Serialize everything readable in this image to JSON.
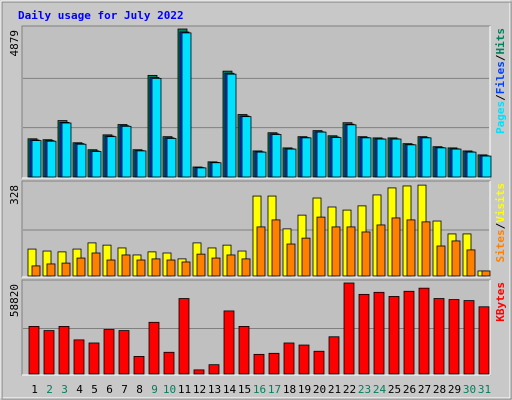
{
  "chart_data": {
    "type": "bar",
    "title": "Daily usage for July 2022",
    "categories": [
      "1",
      "2",
      "3",
      "4",
      "5",
      "6",
      "7",
      "8",
      "9",
      "10",
      "11",
      "12",
      "13",
      "14",
      "15",
      "16",
      "17",
      "18",
      "19",
      "20",
      "21",
      "22",
      "23",
      "24",
      "25",
      "26",
      "27",
      "28",
      "29",
      "30",
      "31"
    ],
    "category_colors": [
      "#000000",
      "#00805c",
      "#00805c",
      "#000000",
      "#000000",
      "#000000",
      "#000000",
      "#000000",
      "#00805c",
      "#00805c",
      "#000000",
      "#000000",
      "#000000",
      "#000000",
      "#000000",
      "#00805c",
      "#00805c",
      "#000000",
      "#000000",
      "#000000",
      "#000000",
      "#000000",
      "#00805c",
      "#00805c",
      "#000000",
      "#000000",
      "#000000",
      "#000000",
      "#000000",
      "#00805c",
      "#00805c"
    ],
    "legend_separator": "/",
    "panels": [
      {
        "ylim": [
          0,
          4879
        ],
        "yticks": [
          4879
        ],
        "series": [
          {
            "name": "Hits",
            "color": "#00805c",
            "values": [
              1260,
              1230,
              1860,
              1130,
              900,
              1390,
              1730,
              900,
              3350,
              1330,
              4879,
              330,
              500,
              3490,
              2060,
              860,
              1460,
              960,
              1330,
              1530,
              1360,
              1790,
              1330,
              1290,
              1290,
              1100,
              1330,
              1000,
              960,
              860,
              730
            ]
          },
          {
            "name": "Files",
            "color": "#0040ff",
            "values": [
              1220,
              1200,
              1800,
              1100,
              860,
              1350,
              1690,
              870,
              3280,
              1290,
              4780,
              310,
              480,
              3420,
              2010,
              830,
              1420,
              930,
              1300,
              1490,
              1320,
              1740,
              1300,
              1260,
              1260,
              1070,
              1300,
              970,
              930,
              830,
              700
            ]
          },
          {
            "name": "Pages",
            "color": "#00e0ff",
            "values": [
              1200,
              1180,
              1780,
              1080,
              840,
              1330,
              1670,
              860,
              3250,
              1270,
              4750,
              300,
              470,
              3390,
              1990,
              820,
              1400,
              920,
              1290,
              1480,
              1300,
              1720,
              1290,
              1250,
              1250,
              1060,
              1290,
              960,
              920,
              820,
              690
            ]
          }
        ]
      },
      {
        "ylim": [
          0,
          328
        ],
        "yticks": [
          328
        ],
        "series": [
          {
            "name": "Visits",
            "color": "#ffff00",
            "values": [
              96,
              89,
              86,
              96,
              118,
              110,
              100,
              75,
              86,
              82,
              61,
              118,
              100,
              110,
              89,
              285,
              285,
              168,
              217,
              278,
              246,
              235,
              250,
              289,
              314,
              321,
              324,
              196,
              150,
              150,
              18
            ]
          },
          {
            "name": "Sites",
            "color": "#ff8000",
            "values": [
              36,
              43,
              46,
              64,
              82,
              57,
              75,
              57,
              61,
              57,
              50,
              78,
              64,
              75,
              61,
              175,
              200,
              114,
              135,
              210,
              175,
              175,
              157,
              182,
              207,
              200,
              193,
              107,
              125,
              93,
              18
            ]
          }
        ]
      },
      {
        "ylim": [
          0,
          58820
        ],
        "yticks": [
          58820
        ],
        "series": [
          {
            "name": "KBytes",
            "color": "#ff0000",
            "values": [
              30750,
              28070,
              30750,
              22060,
              20050,
              28740,
              28070,
              11360,
              33420,
              14040,
              48790,
              2670,
              6020,
              40770,
              30750,
              12700,
              13370,
              20050,
              18720,
              14710,
              24070,
              58820,
              51470,
              52800,
              50130,
              53470,
              55480,
              48790,
              48120,
              47460,
              43450
            ]
          }
        ]
      }
    ]
  }
}
